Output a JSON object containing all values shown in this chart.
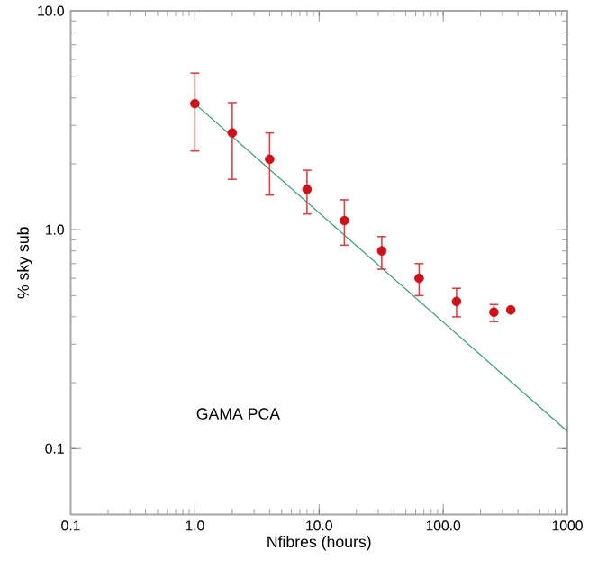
{
  "chart_data": {
    "type": "scatter",
    "xlabel": "Nfibres (hours)",
    "ylabel": "% sky sub",
    "log": "xy",
    "xlim": [
      0.1,
      1000
    ],
    "ylim": [
      0.05,
      10
    ],
    "xticks": [
      {
        "value": 0.1,
        "label": "0.1"
      },
      {
        "value": 1,
        "label": "1.0"
      },
      {
        "value": 10,
        "label": "10.0"
      },
      {
        "value": 100,
        "label": "100.0"
      },
      1000
    ],
    "yticks": [
      0.1,
      {
        "value": 1,
        "label": "1.0"
      },
      {
        "value": 10,
        "label": "10.0"
      }
    ],
    "annotations": [
      "GAMA PCA"
    ],
    "series": [
      {
        "type": "line",
        "color": "#2e9a6a",
        "marker": "none",
        "x": [
          1,
          1000
        ],
        "values": [
          3.77,
          0.12
        ]
      },
      {
        "type": "scatter",
        "marker": "circle",
        "color": "#cc1119",
        "x": [
          1,
          2,
          4,
          8,
          16,
          32,
          64,
          128,
          256,
          350
        ],
        "values": [
          3.77,
          2.77,
          2.1,
          1.53,
          1.1,
          0.8,
          0.6,
          0.47,
          0.42,
          0.43
        ],
        "errors": [
          [
            2.29,
            5.2
          ],
          [
            1.7,
            3.81
          ],
          [
            1.44,
            2.77
          ],
          [
            1.18,
            1.87
          ],
          [
            0.85,
            1.37
          ],
          [
            0.66,
            0.93
          ],
          [
            0.5,
            0.7
          ],
          [
            0.4,
            0.54
          ],
          [
            0.38,
            0.455
          ],
          null
        ]
      }
    ]
  }
}
